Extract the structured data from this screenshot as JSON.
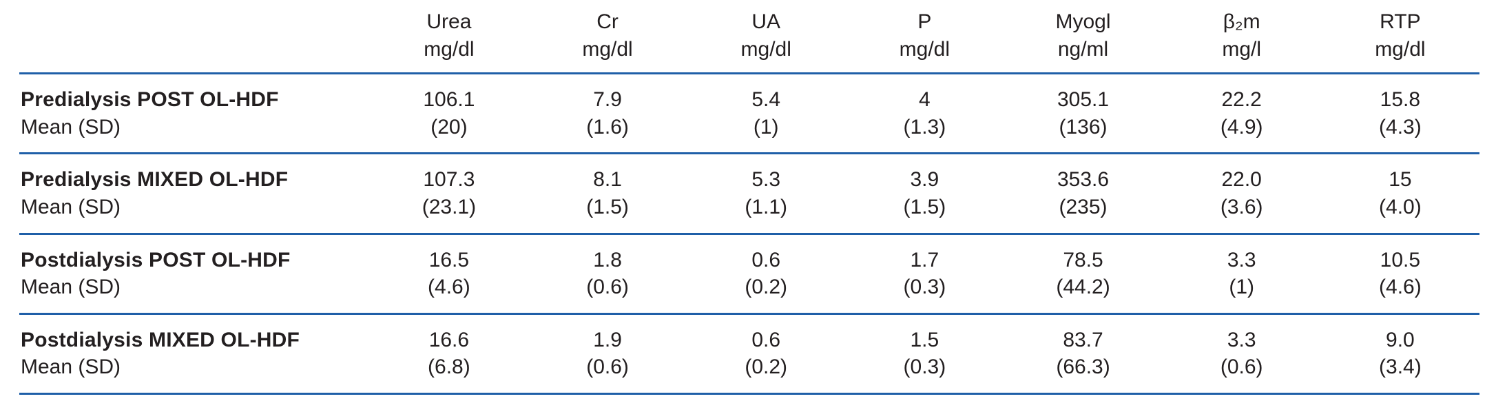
{
  "table": {
    "rule_color": "#1f5fa8",
    "text_color": "#231f20",
    "columns": [
      {
        "name": "Urea",
        "unit": "mg/dl"
      },
      {
        "name": "Cr",
        "unit": "mg/dl"
      },
      {
        "name": "UA",
        "unit": "mg/dl"
      },
      {
        "name": "P",
        "unit": "mg/dl"
      },
      {
        "name": "Myogl",
        "unit": "ng/ml"
      },
      {
        "name": "β₂m",
        "unit": "mg/l"
      },
      {
        "name": "RTP",
        "unit": "mg/dl"
      }
    ],
    "rows": [
      {
        "label": "Predialysis POST OL-HDF",
        "sublabel": "Mean (SD)",
        "means": [
          "106.1",
          "7.9",
          "5.4",
          "4",
          "305.1",
          "22.2",
          "15.8"
        ],
        "sds": [
          "(20)",
          "(1.6)",
          "(1)",
          "(1.3)",
          "(136)",
          "(4.9)",
          "(4.3)"
        ]
      },
      {
        "label": "Predialysis MIXED OL-HDF",
        "sublabel": "Mean (SD)",
        "means": [
          "107.3",
          "8.1",
          "5.3",
          "3.9",
          "353.6",
          "22.0",
          "15"
        ],
        "sds": [
          "(23.1)",
          "(1.5)",
          "(1.1)",
          "(1.5)",
          "(235)",
          "(3.6)",
          "(4.0)"
        ]
      },
      {
        "label": "Postdialysis POST OL-HDF",
        "sublabel": "Mean (SD)",
        "means": [
          "16.5",
          "1.8",
          "0.6",
          "1.7",
          "78.5",
          "3.3",
          "10.5"
        ],
        "sds": [
          "(4.6)",
          "(0.6)",
          "(0.2)",
          "(0.3)",
          "(44.2)",
          "(1)",
          "(4.6)"
        ]
      },
      {
        "label": "Postdialysis MIXED OL-HDF",
        "sublabel": "Mean (SD)",
        "means": [
          "16.6",
          "1.9",
          "0.6",
          "1.5",
          "83.7",
          "3.3",
          "9.0"
        ],
        "sds": [
          "(6.8)",
          "(0.6)",
          "(0.2)",
          "(0.3)",
          "(66.3)",
          "(0.6)",
          "(3.4)"
        ]
      }
    ]
  }
}
